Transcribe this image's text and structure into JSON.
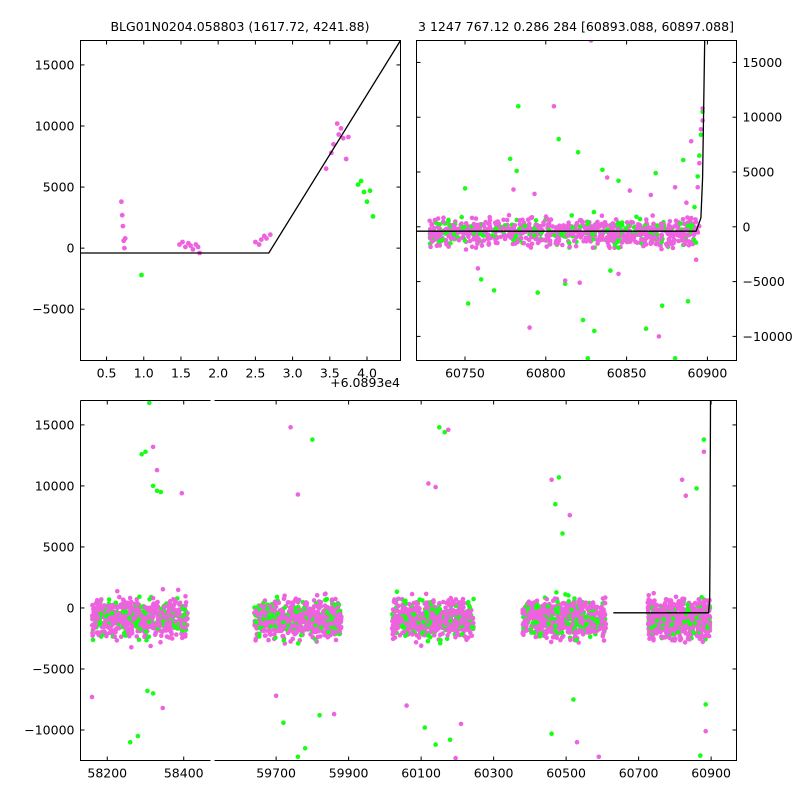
{
  "figure": {
    "title_left": "BLG01N0204.058803 (1617.72, 4241.88)",
    "title_right": "3 1247 767.12 0.286 284 [60893.088, 60897.088]"
  },
  "colors": {
    "band_a": "#ee62e0",
    "band_b": "#14ff14",
    "model": "#000000",
    "axes": "#000000"
  },
  "chart_data": [
    {
      "type": "scatter",
      "panel": "zoom-peak",
      "xlim": [
        0.15,
        4.45
      ],
      "ylim": [
        -9200,
        17000
      ],
      "x_offset_label": "+6.0893e4",
      "x_ticks": [
        0.5,
        1.0,
        1.5,
        2.0,
        2.5,
        3.0,
        3.5,
        4.0
      ],
      "x_tick_labels": [
        "0.5",
        "1.0",
        "1.5",
        "2.0",
        "2.5",
        "3.0",
        "3.5",
        "4.0"
      ],
      "y_ticks": [
        -5000,
        0,
        5000,
        10000,
        15000
      ],
      "y_tick_labels": [
        "−5000",
        "0",
        "5000",
        "10000",
        "15000"
      ],
      "model": {
        "x": [
          0.15,
          2.68,
          4.45
        ],
        "y": [
          -400,
          -400,
          17000
        ]
      },
      "series": [
        {
          "color": "band_a",
          "x": [
            0.7,
            0.71,
            0.72,
            0.73,
            0.74,
            0.75,
            1.48,
            1.52,
            1.56,
            1.6,
            1.63,
            1.66,
            1.7,
            1.73,
            1.75,
            2.5,
            2.55,
            2.58,
            2.62,
            2.65,
            2.7,
            3.45,
            3.52,
            3.55,
            3.6,
            3.62,
            3.65,
            3.68,
            3.72,
            3.75
          ],
          "y": [
            3800,
            2700,
            1800,
            600,
            0,
            800,
            300,
            500,
            100,
            400,
            200,
            -100,
            300,
            100,
            -400,
            500,
            300,
            700,
            1000,
            800,
            1100,
            6500,
            7800,
            8500,
            10200,
            9300,
            9800,
            9000,
            7300,
            9100
          ]
        },
        {
          "color": "band_b",
          "x": [
            0.97,
            3.88,
            3.92,
            3.96,
            4.0,
            4.04,
            4.08
          ],
          "y": [
            -2200,
            5200,
            5500,
            4600,
            3800,
            4700,
            2600
          ]
        }
      ]
    },
    {
      "type": "scatter",
      "panel": "zoom-season",
      "xlim": [
        60720,
        60918
      ],
      "ylim": [
        -12200,
        17000
      ],
      "x_ticks": [
        60750,
        60800,
        60850,
        60900
      ],
      "x_tick_labels": [
        "60750",
        "60800",
        "60850",
        "60900"
      ],
      "y_ticks": [
        -10000,
        -5000,
        0,
        5000,
        10000,
        15000
      ],
      "y_tick_labels": [
        "−10000",
        "−5000",
        "0",
        "5000",
        "10000",
        "15000"
      ],
      "model": {
        "x": [
          60720,
          60893,
          60896,
          60897,
          60898.3
        ],
        "y": [
          -400,
          -400,
          800,
          4500,
          17000
        ]
      },
      "band": {
        "x_start": 60728,
        "x_end": 60895,
        "center": -500,
        "spread": 900
      },
      "series": [
        {
          "color": "band_b",
          "x": [
            60750,
            60752,
            60760,
            60768,
            60778,
            60782,
            60783,
            60795,
            60808,
            60812,
            60820,
            60823,
            60826,
            60830,
            60835,
            60840,
            60845,
            60862,
            60868,
            60872,
            60880,
            60885,
            60888,
            60892,
            60894,
            60895,
            60896,
            60897
          ],
          "y": [
            3500,
            -7000,
            -4800,
            -5800,
            6200,
            5100,
            11000,
            -6000,
            8000,
            -5200,
            6800,
            -8500,
            -12000,
            -9500,
            5200,
            -4000,
            4200,
            -9300,
            4900,
            -7200,
            -12000,
            6100,
            -6800,
            1800,
            4600,
            6500,
            8400,
            10500
          ]
        },
        {
          "color": "band_a",
          "x": [
            60758,
            60780,
            60790,
            60793,
            60805,
            60812,
            60821,
            60828,
            60838,
            60845,
            60852,
            60865,
            60870,
            60880,
            60887,
            60890,
            60893,
            60894,
            60895,
            60896,
            60897,
            60897
          ],
          "y": [
            -3800,
            3400,
            -9200,
            3000,
            11000,
            -4900,
            -5100,
            17000,
            4500,
            -4300,
            3300,
            2900,
            -10000,
            3600,
            2200,
            7800,
            -3000,
            3600,
            5800,
            8900,
            9700,
            10800
          ]
        }
      ]
    },
    {
      "type": "scatter",
      "panel": "full-lightcurve",
      "ylim": [
        -12500,
        17000
      ],
      "y_ticks": [
        -10000,
        -5000,
        0,
        5000,
        10000,
        15000
      ],
      "y_tick_labels": [
        "−10000",
        "−5000",
        "0",
        "5000",
        "10000",
        "15000"
      ],
      "segments": [
        {
          "xlim": [
            58130,
            58470
          ],
          "x_ticks": [
            58200,
            58400
          ],
          "x_tick_labels": [
            "58200",
            "58400"
          ]
        },
        {
          "xlim": [
            59530,
            60970
          ],
          "x_ticks": [
            59700,
            59900,
            60100,
            60300,
            60500,
            60700,
            60900
          ],
          "x_tick_labels": [
            "59700",
            "59900",
            "60100",
            "60300",
            "60500",
            "60700",
            "60900"
          ]
        }
      ],
      "model": {
        "x": [
          60630,
          60893,
          60896,
          60897,
          60898.3
        ],
        "y": [
          -400,
          -400,
          800,
          4500,
          17000
        ]
      },
      "seasons": [
        {
          "x_start": 58160,
          "x_end": 58410,
          "center": -800,
          "spread": 1100
        },
        {
          "x_start": 59640,
          "x_end": 59880,
          "center": -900,
          "spread": 1100
        },
        {
          "x_start": 60020,
          "x_end": 60245,
          "center": -900,
          "spread": 1100
        },
        {
          "x_start": 60380,
          "x_end": 60610,
          "center": -900,
          "spread": 1100
        },
        {
          "x_start": 60725,
          "x_end": 60897,
          "center": -900,
          "spread": 1100
        }
      ],
      "series": [
        {
          "color": "band_b",
          "x": [
            58290,
            58300,
            58310,
            58320,
            58330,
            58340,
            58260,
            58280,
            58305,
            58320,
            59800,
            59760,
            59780,
            59720,
            59820,
            60150,
            60165,
            60130,
            60140,
            60180,
            60110,
            60470,
            60480,
            60490,
            60460,
            60520,
            60860,
            60880,
            60870,
            60885
          ],
          "y": [
            12600,
            12800,
            16800,
            10000,
            9600,
            9500,
            -11000,
            -10500,
            -6800,
            -7000,
            13800,
            -12200,
            -11500,
            -9400,
            -8800,
            14800,
            14400,
            -12800,
            -11200,
            -10800,
            -9800,
            8500,
            10700,
            6100,
            -10300,
            -7500,
            9800,
            13800,
            -12100,
            -7900
          ]
        },
        {
          "color": "band_a",
          "x": [
            58160,
            58320,
            58330,
            58345,
            58395,
            59740,
            59760,
            59700,
            59860,
            60120,
            60140,
            60175,
            60195,
            60060,
            60210,
            60460,
            60510,
            60530,
            60590,
            60820,
            60830,
            60880,
            60885
          ],
          "y": [
            -7300,
            13200,
            11300,
            -8200,
            9400,
            14800,
            9300,
            -7200,
            -8700,
            10200,
            9900,
            14600,
            -12300,
            -8000,
            -9500,
            10500,
            7600,
            -11000,
            -12200,
            10500,
            9200,
            12800,
            -10100
          ]
        }
      ]
    }
  ]
}
